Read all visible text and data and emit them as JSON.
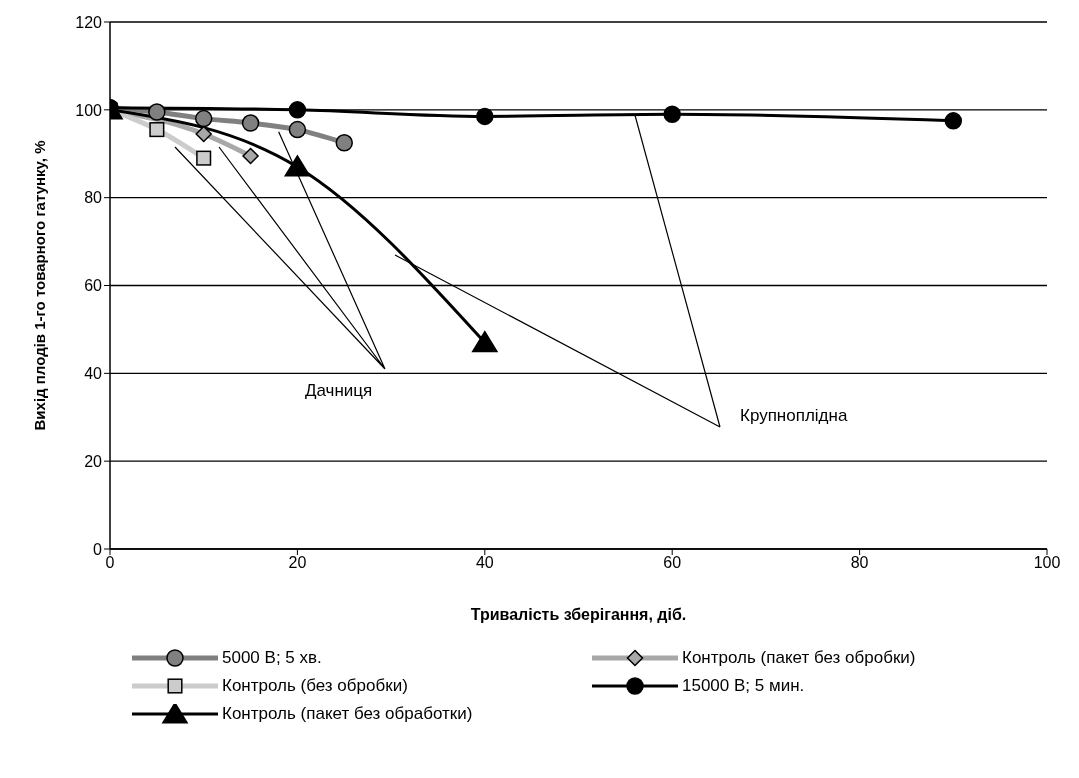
{
  "chart_data": {
    "type": "line",
    "xlabel": "Тривалість зберігання, діб.",
    "ylabel": "Вихід плодів 1-го товарного гатунку, %",
    "xlim": [
      0,
      100
    ],
    "xticks": [
      0,
      20,
      40,
      60,
      80,
      100
    ],
    "ylim": [
      0,
      120
    ],
    "yticks": [
      0,
      20,
      40,
      60,
      80,
      100,
      120
    ],
    "grid": "y",
    "legend": "bottom",
    "annotations": [
      {
        "text": "Дачниця",
        "x": 18,
        "y": 95
      },
      {
        "text": "Крупноплідна",
        "x": 56,
        "y": 99
      }
    ],
    "series": [
      {
        "name": "5000 В; 5 хв.",
        "color": "#808080",
        "marker": "circle",
        "x": [
          0,
          5,
          10,
          15,
          20,
          25
        ],
        "values": [
          100.5,
          99.5,
          98,
          97,
          95.5,
          92.5
        ]
      },
      {
        "name": "Контроль (пакет без обробки)",
        "color": "#a8a8a8",
        "marker": "diamond",
        "x": [
          0,
          10,
          15
        ],
        "values": [
          100,
          94.5,
          89.5
        ]
      },
      {
        "name": "Контроль (без обробки)",
        "color": "#cccccc",
        "marker": "square",
        "x": [
          0,
          5,
          10
        ],
        "values": [
          100,
          95.5,
          89
        ]
      },
      {
        "name": "15000 В; 5 мин.",
        "color": "#000000",
        "marker": "circle",
        "x": [
          0,
          20,
          40,
          60,
          90
        ],
        "values": [
          100.5,
          100,
          98.5,
          99,
          97.5
        ]
      },
      {
        "name": "Контроль (пакет без обработки)",
        "color": "#000000",
        "marker": "triangle",
        "x": [
          0,
          20,
          40
        ],
        "values": [
          100,
          87,
          47
        ]
      }
    ]
  }
}
